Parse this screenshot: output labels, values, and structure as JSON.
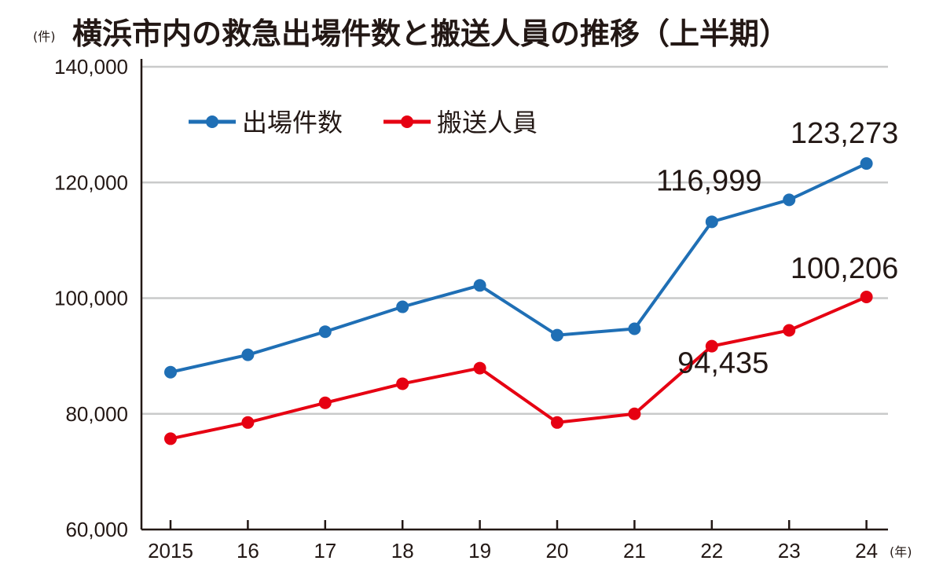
{
  "chart_data": {
    "type": "line",
    "title": "横浜市内の救急出場件数と搬送人員の推移（上半期）",
    "ylabel": "(件)",
    "xlabel": "(年)",
    "x": [
      "2015",
      "16",
      "17",
      "18",
      "19",
      "20",
      "21",
      "22",
      "23",
      "24"
    ],
    "ylim": [
      60000,
      140000
    ],
    "yticks": [
      60000,
      80000,
      100000,
      120000,
      140000
    ],
    "ytick_labels": [
      "60,000",
      "80,000",
      "100,000",
      "120,000",
      "140,000"
    ],
    "grid": true,
    "legend_position": "top-left",
    "series": [
      {
        "name": "出場件数",
        "color": "#1f6fb5",
        "values": [
          87200,
          90200,
          94200,
          98500,
          102200,
          93600,
          94700,
          113200,
          116999,
          123273
        ]
      },
      {
        "name": "搬送人員",
        "color": "#e60012",
        "values": [
          75700,
          78500,
          81900,
          85200,
          87900,
          78500,
          80000,
          91700,
          94435,
          100206
        ]
      }
    ],
    "annotations": [
      {
        "text": "123,273",
        "series": 0,
        "index": 9
      },
      {
        "text": "116,999",
        "series": 0,
        "index": 8
      },
      {
        "text": "100,206",
        "series": 1,
        "index": 9
      },
      {
        "text": "94,435",
        "series": 1,
        "index": 8
      }
    ]
  }
}
